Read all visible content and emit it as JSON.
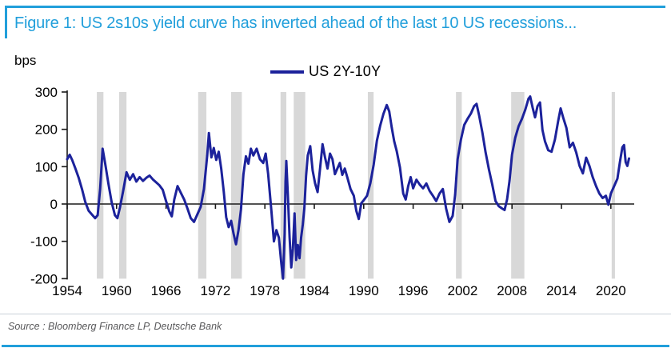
{
  "figure": {
    "title": "Figure 1: US 2s10s yield curve has inverted ahead of the last 10 US recessions...",
    "source": "Source : Bloomberg Finance LP, Deutsche Bank",
    "accent_color": "#219fdb"
  },
  "chart_data": {
    "type": "line",
    "title": "US 2s10s yield curve vs US recessions",
    "unit_label": "bps",
    "xlabel": "",
    "ylabel": "bps",
    "ylim": [
      -200,
      300
    ],
    "yticks": [
      300,
      200,
      100,
      0,
      -100,
      -200
    ],
    "xticks": [
      1954,
      1960,
      1966,
      1972,
      1978,
      1984,
      1990,
      1996,
      2002,
      2008,
      2014,
      2020
    ],
    "xlim": [
      1954,
      2022.5
    ],
    "grid": false,
    "legend_position": "top-center",
    "axis_color": "#1a1a1a",
    "band_color": "#d8d8d8",
    "recession_bands": [
      [
        1957.6,
        1958.4
      ],
      [
        1960.3,
        1961.2
      ],
      [
        1969.9,
        1970.9
      ],
      [
        1973.9,
        1975.2
      ],
      [
        1979.9,
        1980.6
      ],
      [
        1981.5,
        1982.9
      ],
      [
        1990.5,
        1991.2
      ],
      [
        2001.2,
        2001.9
      ],
      [
        2007.9,
        2009.5
      ],
      [
        2020.1,
        2020.5
      ]
    ],
    "series": [
      {
        "name": "US 2Y-10Y",
        "color": "#1c229b",
        "points": [
          [
            1954.0,
            120
          ],
          [
            1954.3,
            132
          ],
          [
            1954.6,
            118
          ],
          [
            1955.0,
            95
          ],
          [
            1955.4,
            70
          ],
          [
            1955.8,
            40
          ],
          [
            1956.2,
            5
          ],
          [
            1956.6,
            -18
          ],
          [
            1957.0,
            -28
          ],
          [
            1957.4,
            -38
          ],
          [
            1957.7,
            -30
          ],
          [
            1958.0,
            40
          ],
          [
            1958.3,
            148
          ],
          [
            1958.6,
            110
          ],
          [
            1959.0,
            55
          ],
          [
            1959.4,
            5
          ],
          [
            1959.8,
            -30
          ],
          [
            1960.1,
            -38
          ],
          [
            1960.4,
            -10
          ],
          [
            1960.8,
            35
          ],
          [
            1961.2,
            85
          ],
          [
            1961.6,
            65
          ],
          [
            1962.0,
            80
          ],
          [
            1962.4,
            60
          ],
          [
            1962.8,
            72
          ],
          [
            1963.2,
            62
          ],
          [
            1963.6,
            70
          ],
          [
            1964.0,
            76
          ],
          [
            1964.4,
            66
          ],
          [
            1964.8,
            58
          ],
          [
            1965.2,
            50
          ],
          [
            1965.6,
            38
          ],
          [
            1966.0,
            8
          ],
          [
            1966.4,
            -20
          ],
          [
            1966.7,
            -33
          ],
          [
            1967.0,
            12
          ],
          [
            1967.4,
            48
          ],
          [
            1967.8,
            30
          ],
          [
            1968.2,
            12
          ],
          [
            1968.6,
            -12
          ],
          [
            1969.0,
            -38
          ],
          [
            1969.4,
            -48
          ],
          [
            1969.8,
            -28
          ],
          [
            1970.2,
            -8
          ],
          [
            1970.6,
            40
          ],
          [
            1971.0,
            130
          ],
          [
            1971.2,
            190
          ],
          [
            1971.5,
            125
          ],
          [
            1971.8,
            150
          ],
          [
            1972.1,
            118
          ],
          [
            1972.4,
            140
          ],
          [
            1972.7,
            95
          ],
          [
            1973.0,
            35
          ],
          [
            1973.3,
            -35
          ],
          [
            1973.6,
            -62
          ],
          [
            1973.9,
            -45
          ],
          [
            1974.2,
            -80
          ],
          [
            1974.5,
            -108
          ],
          [
            1974.8,
            -70
          ],
          [
            1975.1,
            -15
          ],
          [
            1975.4,
            80
          ],
          [
            1975.7,
            128
          ],
          [
            1976.0,
            108
          ],
          [
            1976.3,
            148
          ],
          [
            1976.6,
            130
          ],
          [
            1977.0,
            148
          ],
          [
            1977.4,
            120
          ],
          [
            1977.8,
            110
          ],
          [
            1978.1,
            135
          ],
          [
            1978.4,
            80
          ],
          [
            1978.8,
            -20
          ],
          [
            1979.1,
            -100
          ],
          [
            1979.4,
            -70
          ],
          [
            1979.7,
            -90
          ],
          [
            1980.0,
            -160
          ],
          [
            1980.2,
            -200
          ],
          [
            1980.4,
            -80
          ],
          [
            1980.5,
            60
          ],
          [
            1980.6,
            115
          ],
          [
            1980.8,
            20
          ],
          [
            1981.0,
            -90
          ],
          [
            1981.2,
            -170
          ],
          [
            1981.4,
            -120
          ],
          [
            1981.6,
            -25
          ],
          [
            1981.8,
            -150
          ],
          [
            1982.0,
            -110
          ],
          [
            1982.2,
            -145
          ],
          [
            1982.4,
            -90
          ],
          [
            1982.6,
            -55
          ],
          [
            1982.8,
            -10
          ],
          [
            1983.0,
            75
          ],
          [
            1983.2,
            130
          ],
          [
            1983.5,
            155
          ],
          [
            1983.8,
            90
          ],
          [
            1984.1,
            55
          ],
          [
            1984.4,
            32
          ],
          [
            1984.7,
            95
          ],
          [
            1985.0,
            160
          ],
          [
            1985.3,
            125
          ],
          [
            1985.6,
            95
          ],
          [
            1985.9,
            135
          ],
          [
            1986.2,
            120
          ],
          [
            1986.5,
            80
          ],
          [
            1986.8,
            95
          ],
          [
            1987.1,
            110
          ],
          [
            1987.4,
            78
          ],
          [
            1987.7,
            95
          ],
          [
            1988.0,
            72
          ],
          [
            1988.4,
            40
          ],
          [
            1988.8,
            22
          ],
          [
            1989.1,
            -18
          ],
          [
            1989.4,
            -40
          ],
          [
            1989.7,
            2
          ],
          [
            1990.0,
            10
          ],
          [
            1990.4,
            22
          ],
          [
            1990.8,
            55
          ],
          [
            1991.2,
            105
          ],
          [
            1991.6,
            170
          ],
          [
            1992.0,
            210
          ],
          [
            1992.4,
            242
          ],
          [
            1992.8,
            265
          ],
          [
            1993.1,
            248
          ],
          [
            1993.4,
            205
          ],
          [
            1993.7,
            168
          ],
          [
            1994.0,
            142
          ],
          [
            1994.4,
            98
          ],
          [
            1994.8,
            28
          ],
          [
            1995.1,
            12
          ],
          [
            1995.4,
            48
          ],
          [
            1995.7,
            72
          ],
          [
            1996.0,
            42
          ],
          [
            1996.4,
            65
          ],
          [
            1996.8,
            52
          ],
          [
            1997.2,
            42
          ],
          [
            1997.6,
            55
          ],
          [
            1998.0,
            35
          ],
          [
            1998.4,
            22
          ],
          [
            1998.8,
            8
          ],
          [
            1999.2,
            28
          ],
          [
            1999.6,
            40
          ],
          [
            2000.0,
            -12
          ],
          [
            2000.4,
            -48
          ],
          [
            2000.8,
            -32
          ],
          [
            2001.1,
            25
          ],
          [
            2001.4,
            120
          ],
          [
            2001.8,
            172
          ],
          [
            2002.2,
            212
          ],
          [
            2002.6,
            228
          ],
          [
            2003.0,
            242
          ],
          [
            2003.4,
            262
          ],
          [
            2003.7,
            268
          ],
          [
            2004.0,
            238
          ],
          [
            2004.4,
            192
          ],
          [
            2004.8,
            138
          ],
          [
            2005.2,
            92
          ],
          [
            2005.6,
            52
          ],
          [
            2006.0,
            8
          ],
          [
            2006.4,
            -6
          ],
          [
            2006.8,
            -12
          ],
          [
            2007.1,
            -16
          ],
          [
            2007.4,
            12
          ],
          [
            2007.7,
            62
          ],
          [
            2008.0,
            132
          ],
          [
            2008.4,
            178
          ],
          [
            2008.8,
            208
          ],
          [
            2009.2,
            228
          ],
          [
            2009.6,
            252
          ],
          [
            2010.0,
            282
          ],
          [
            2010.2,
            288
          ],
          [
            2010.5,
            258
          ],
          [
            2010.8,
            232
          ],
          [
            2011.1,
            262
          ],
          [
            2011.4,
            272
          ],
          [
            2011.7,
            198
          ],
          [
            2012.0,
            168
          ],
          [
            2012.4,
            144
          ],
          [
            2012.8,
            140
          ],
          [
            2013.2,
            172
          ],
          [
            2013.6,
            222
          ],
          [
            2013.9,
            256
          ],
          [
            2014.2,
            232
          ],
          [
            2014.6,
            204
          ],
          [
            2015.0,
            152
          ],
          [
            2015.4,
            164
          ],
          [
            2015.8,
            138
          ],
          [
            2016.2,
            102
          ],
          [
            2016.6,
            82
          ],
          [
            2017.0,
            124
          ],
          [
            2017.4,
            102
          ],
          [
            2017.8,
            72
          ],
          [
            2018.2,
            48
          ],
          [
            2018.6,
            28
          ],
          [
            2019.0,
            16
          ],
          [
            2019.4,
            22
          ],
          [
            2019.7,
            -2
          ],
          [
            2020.0,
            28
          ],
          [
            2020.4,
            48
          ],
          [
            2020.8,
            68
          ],
          [
            2021.1,
            112
          ],
          [
            2021.4,
            152
          ],
          [
            2021.6,
            158
          ],
          [
            2021.8,
            112
          ],
          [
            2022.0,
            102
          ],
          [
            2022.2,
            122
          ]
        ]
      }
    ]
  }
}
